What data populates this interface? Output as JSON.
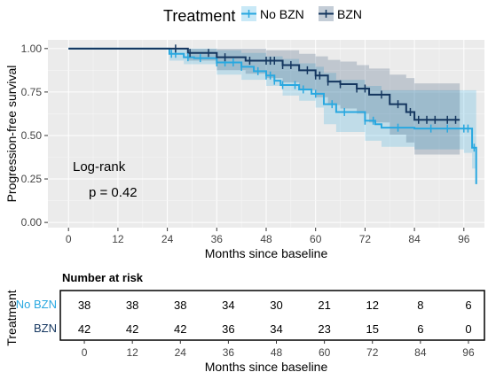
{
  "chart_data": [
    {
      "type": "line",
      "subtype": "kaplan-meier",
      "title": "",
      "xlabel": "Months since baseline",
      "ylabel": "Progression-free survival",
      "xlim": [
        -5,
        101
      ],
      "ylim": [
        -0.03,
        1.05
      ],
      "x_ticks": [
        0,
        12,
        24,
        36,
        48,
        60,
        72,
        84,
        96
      ],
      "y_ticks": [
        0.0,
        0.25,
        0.5,
        0.75,
        1.0
      ],
      "y_tick_labels": [
        "0.00",
        "0.25",
        "0.50",
        "0.75",
        "1.00"
      ],
      "grid": true,
      "legend": {
        "title": "Treatment",
        "position": "top",
        "entries": [
          {
            "label": "No BZN",
            "color": "#29A8E0"
          },
          {
            "label": "BZN",
            "color": "#14365F"
          }
        ]
      },
      "annotations": {
        "test": "Log-rank",
        "p_value": "p = 0.42"
      },
      "series": [
        {
          "name": "No BZN",
          "color": "#29A8E0",
          "steps": [
            [
              0,
              1.0
            ],
            [
              24.5,
              0.97
            ],
            [
              28,
              0.95
            ],
            [
              30.5,
              0.945
            ],
            [
              36,
              0.92
            ],
            [
              42,
              0.895
            ],
            [
              45,
              0.87
            ],
            [
              48,
              0.845
            ],
            [
              50,
              0.815
            ],
            [
              51.5,
              0.79
            ],
            [
              56,
              0.765
            ],
            [
              59,
              0.74
            ],
            [
              62,
              0.68
            ],
            [
              65,
              0.635
            ],
            [
              72,
              0.585
            ],
            [
              74.5,
              0.565
            ],
            [
              76,
              0.545
            ],
            [
              84,
              0.54
            ],
            [
              96,
              0.54
            ],
            [
              98,
              0.43
            ],
            [
              99,
              0.22
            ]
          ],
          "censor_times": [
            25,
            26,
            29,
            32,
            36,
            38,
            40,
            42,
            46,
            48,
            49,
            50,
            52,
            55,
            57,
            60,
            64,
            67,
            72,
            74,
            80,
            88,
            92,
            96,
            97,
            98.5
          ],
          "ci_upper": [
            [
              0,
              1.0
            ],
            [
              24.5,
              1.0
            ],
            [
              28,
              1.0
            ],
            [
              36,
              0.99
            ],
            [
              42,
              0.975
            ],
            [
              48,
              0.955
            ],
            [
              52,
              0.94
            ],
            [
              56,
              0.915
            ],
            [
              60,
              0.895
            ],
            [
              62,
              0.86
            ],
            [
              65,
              0.82
            ],
            [
              72,
              0.785
            ],
            [
              76,
              0.76
            ],
            [
              84,
              0.76
            ],
            [
              96,
              0.76
            ],
            [
              99,
              0.76
            ]
          ],
          "ci_lower": [
            [
              0,
              1.0
            ],
            [
              24.5,
              0.93
            ],
            [
              28,
              0.91
            ],
            [
              36,
              0.85
            ],
            [
              42,
              0.82
            ],
            [
              48,
              0.785
            ],
            [
              52,
              0.73
            ],
            [
              56,
              0.7
            ],
            [
              60,
              0.66
            ],
            [
              62,
              0.565
            ],
            [
              65,
              0.52
            ],
            [
              72,
              0.47
            ],
            [
              76,
              0.435
            ],
            [
              84,
              0.42
            ],
            [
              96,
              0.4
            ],
            [
              98,
              0.31
            ],
            [
              99,
              0.06
            ]
          ]
        },
        {
          "name": "BZN",
          "color": "#14365F",
          "steps": [
            [
              0,
              1.0
            ],
            [
              29,
              0.975
            ],
            [
              36,
              0.95
            ],
            [
              43,
              0.93
            ],
            [
              52,
              0.905
            ],
            [
              56,
              0.875
            ],
            [
              60,
              0.845
            ],
            [
              63,
              0.81
            ],
            [
              66,
              0.795
            ],
            [
              70,
              0.77
            ],
            [
              73,
              0.735
            ],
            [
              78,
              0.68
            ],
            [
              82,
              0.635
            ],
            [
              84,
              0.59
            ],
            [
              95,
              0.59
            ]
          ],
          "censor_times": [
            26,
            29.5,
            34,
            38,
            44,
            48,
            49,
            50,
            52,
            54,
            58,
            60,
            61,
            63,
            66,
            70,
            72,
            76,
            80,
            83,
            85,
            87,
            89,
            92,
            94
          ],
          "ci_upper": [
            [
              0,
              1.0
            ],
            [
              29,
              1.0
            ],
            [
              36,
              1.0
            ],
            [
              48,
              0.99
            ],
            [
              56,
              0.97
            ],
            [
              60,
              0.955
            ],
            [
              63,
              0.935
            ],
            [
              66,
              0.925
            ],
            [
              70,
              0.905
            ],
            [
              73,
              0.885
            ],
            [
              78,
              0.85
            ],
            [
              82,
              0.83
            ],
            [
              84,
              0.8
            ],
            [
              95,
              0.8
            ]
          ],
          "ci_lower": [
            [
              0,
              1.0
            ],
            [
              29,
              0.93
            ],
            [
              36,
              0.875
            ],
            [
              43,
              0.855
            ],
            [
              48,
              0.83
            ],
            [
              52,
              0.805
            ],
            [
              56,
              0.76
            ],
            [
              60,
              0.72
            ],
            [
              63,
              0.675
            ],
            [
              66,
              0.655
            ],
            [
              70,
              0.625
            ],
            [
              73,
              0.575
            ],
            [
              78,
              0.505
            ],
            [
              82,
              0.46
            ],
            [
              84,
              0.39
            ],
            [
              95,
              0.39
            ]
          ]
        }
      ]
    },
    {
      "type": "table",
      "title": "Number at risk",
      "xlabel": "Months since baseline",
      "ylabel": "Treatment",
      "x_ticks": [
        0,
        12,
        24,
        36,
        48,
        60,
        72,
        84,
        96
      ],
      "rows": [
        {
          "label": "No BZN",
          "color": "#29A8E0",
          "values": [
            38,
            38,
            38,
            34,
            30,
            21,
            12,
            8,
            6
          ]
        },
        {
          "label": "BZN",
          "color": "#14365F",
          "values": [
            42,
            42,
            42,
            36,
            34,
            23,
            15,
            6,
            0
          ]
        }
      ]
    }
  ]
}
